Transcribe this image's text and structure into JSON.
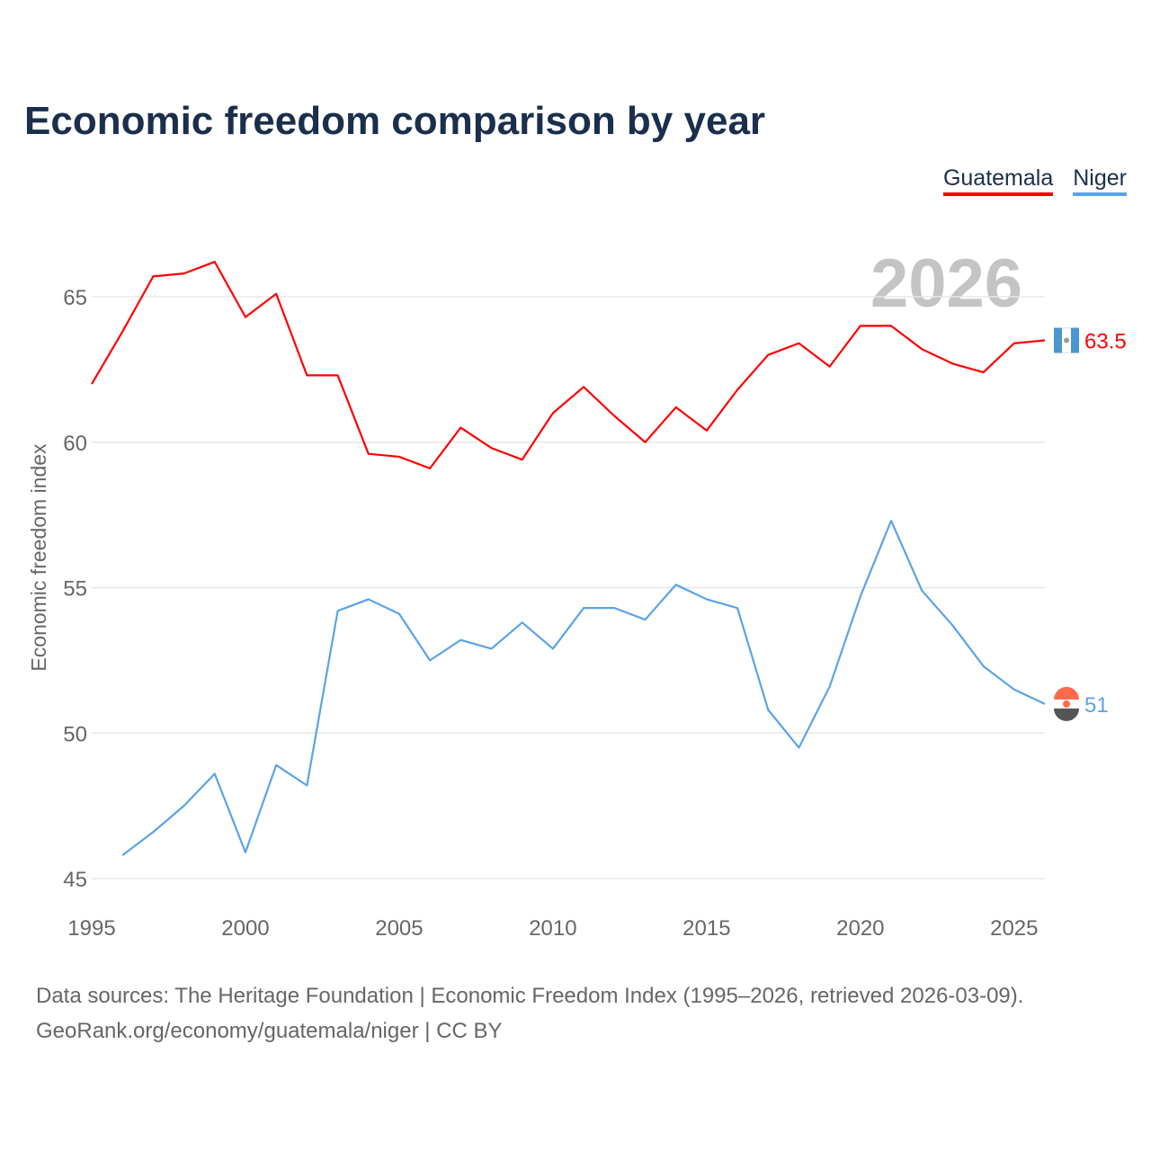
{
  "title": "Economic freedom comparison by year",
  "year_label": "2026",
  "sources": {
    "line1": "Data sources: The Heritage Foundation | Economic Freedom Index (1995–2026, retrieved 2026-03-09).",
    "line2": "GeoRank.org/economy/guatemala/niger | CC BY"
  },
  "chart_data": {
    "type": "line",
    "title": "Economic freedom comparison by year",
    "xlabel": "",
    "ylabel": "Economic freedom index",
    "xlim": [
      1995,
      2026
    ],
    "ylim": [
      45,
      67
    ],
    "xticks": [
      "1995",
      "2000",
      "2005",
      "2010",
      "2015",
      "2020",
      "2025"
    ],
    "yticks": [
      "45",
      "50",
      "55",
      "60",
      "65"
    ],
    "grid": true,
    "legend": "top-right",
    "series": [
      {
        "name": "Guatemala",
        "color": "#ff0000",
        "end_label": "63.5",
        "x": [
          1995,
          1996,
          1997,
          1998,
          1999,
          2000,
          2001,
          2002,
          2003,
          2004,
          2005,
          2006,
          2007,
          2008,
          2009,
          2010,
          2011,
          2012,
          2013,
          2014,
          2015,
          2016,
          2017,
          2018,
          2019,
          2020,
          2021,
          2022,
          2023,
          2024,
          2025,
          2026
        ],
        "values": [
          62.0,
          63.8,
          65.7,
          65.8,
          66.2,
          64.3,
          65.1,
          62.3,
          62.3,
          59.6,
          59.5,
          59.1,
          60.5,
          59.8,
          59.4,
          61.0,
          61.9,
          60.9,
          60.0,
          61.2,
          60.4,
          61.8,
          63.0,
          63.4,
          62.6,
          64.0,
          64.0,
          63.2,
          62.7,
          62.4,
          63.4,
          63.5
        ]
      },
      {
        "name": "Niger",
        "color": "#5ba3e8",
        "end_label": "51",
        "x": [
          1996,
          1997,
          1998,
          1999,
          2000,
          2001,
          2002,
          2003,
          2004,
          2005,
          2006,
          2007,
          2008,
          2009,
          2010,
          2011,
          2012,
          2013,
          2014,
          2015,
          2016,
          2017,
          2018,
          2019,
          2020,
          2021,
          2022,
          2023,
          2024,
          2025,
          2026
        ],
        "values": [
          45.8,
          46.6,
          47.5,
          48.6,
          45.9,
          48.9,
          48.2,
          54.2,
          54.6,
          54.1,
          52.5,
          53.2,
          52.9,
          53.8,
          52.9,
          54.3,
          54.3,
          53.9,
          55.1,
          54.6,
          54.3,
          50.8,
          49.5,
          51.6,
          54.7,
          57.3,
          54.9,
          53.7,
          52.3,
          51.5,
          51.0
        ]
      }
    ]
  }
}
